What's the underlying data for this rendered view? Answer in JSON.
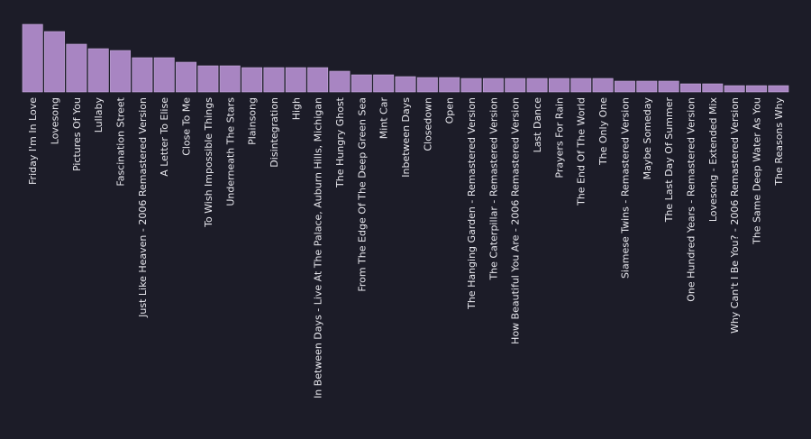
{
  "chart_data": {
    "type": "bar",
    "colors": {
      "background": "#1c1c28",
      "bar": "#a885c2",
      "text": "#e8e8ee"
    },
    "grid": false,
    "legend": "none",
    "categories": [
      "Friday I'm In Love",
      "Lovesong",
      "Pictures Of You",
      "Lullaby",
      "Fascination Street",
      "Just Like Heaven - 2006 Remastered Version",
      "A Letter To Elise",
      "Close To Me",
      "To Wish Impossible Things",
      "Underneath The Stars",
      "Plainsong",
      "Disintegration",
      "High",
      "In Between Days - Live At The Palace, Auburn Hills, Michigan",
      "The Hungry Ghost",
      "From The Edge Of The Deep Green Sea",
      "Mint Car",
      "Inbetween Days",
      "Closedown",
      "Open",
      "The Hanging Garden - Remastered Version",
      "The Caterpillar - Remastered Version",
      "How Beautiful You Are - 2006 Remastered Version",
      "Last Dance",
      "Prayers For Rain",
      "The End Of The World",
      "The Only One",
      "Siamese Twins - Remastered Version",
      "Maybe Someday",
      "The Last Day Of Summer",
      "One Hundred Years - Remastered Version",
      "Lovesong - Extended Mix",
      "Why Can't I Be You? - 2006 Remastered Version",
      "The Same Deep Water As You",
      "The Reasons Why"
    ],
    "values": [
      75,
      67,
      53,
      48,
      46,
      38,
      38,
      33,
      29,
      29,
      27,
      27,
      27,
      27,
      23,
      19,
      19,
      17,
      16,
      16,
      15,
      15,
      15,
      15,
      15,
      15,
      15,
      12,
      12,
      12,
      9,
      9,
      7,
      7,
      7
    ],
    "ylim": [
      0,
      75
    ]
  }
}
